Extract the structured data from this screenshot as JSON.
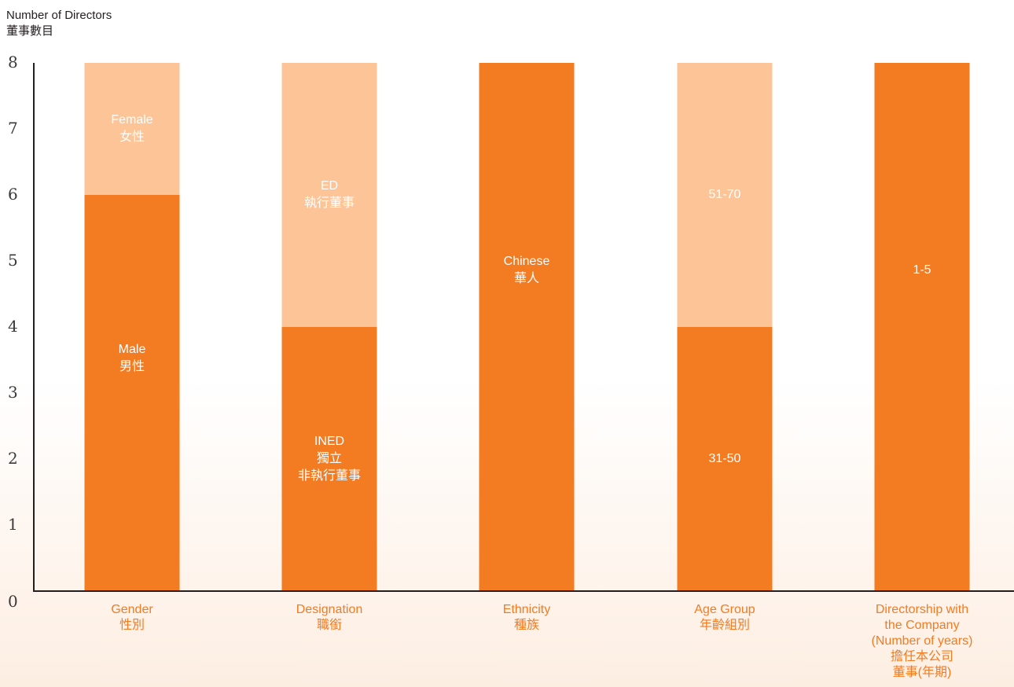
{
  "colors": {
    "background_fade": "#fdeee2",
    "primary": "#f37b21",
    "secondary": "#fdc497",
    "axis": "#231f20",
    "tick_text": "#3a3a3a",
    "category_text": "#f37b21",
    "segment_text": "#ffffff"
  },
  "chart_data": {
    "type": "bar",
    "stacked": true,
    "ylabel": [
      "Number of Directors",
      "董事數目"
    ],
    "ylim": [
      0,
      8
    ],
    "yticks": [
      "0",
      "1",
      "2",
      "3",
      "4",
      "5",
      "6",
      "7",
      "8"
    ],
    "grid": false,
    "categories": [
      [
        "Gender",
        "性別"
      ],
      [
        "Designation",
        "職銜"
      ],
      [
        "Ethnicity",
        "種族"
      ],
      [
        "Age Group",
        "年齡組別"
      ],
      [
        "Directorship with",
        "the Company",
        "(Number of years)",
        "擔任本公司",
        "董事(年期)"
      ]
    ],
    "bars": [
      {
        "segments": [
          {
            "label": [
              "Male",
              "男性"
            ],
            "value": 6,
            "tone": "primary"
          },
          {
            "label": [
              "Female",
              "女性"
            ],
            "value": 2,
            "tone": "secondary"
          }
        ]
      },
      {
        "segments": [
          {
            "label": [
              "INED",
              "獨立",
              "非執行董事"
            ],
            "value": 4,
            "tone": "primary"
          },
          {
            "label": [
              "ED",
              "執行董事"
            ],
            "value": 4,
            "tone": "secondary"
          }
        ]
      },
      {
        "segments": [
          {
            "label": [
              "Chinese",
              "華人"
            ],
            "value": 8,
            "tone": "primary"
          }
        ]
      },
      {
        "segments": [
          {
            "label": [
              "31-50"
            ],
            "value": 4,
            "tone": "primary"
          },
          {
            "label": [
              "51-70"
            ],
            "value": 4,
            "tone": "secondary"
          }
        ]
      },
      {
        "segments": [
          {
            "label": [
              "1-5"
            ],
            "value": 8,
            "tone": "primary"
          }
        ]
      }
    ]
  }
}
